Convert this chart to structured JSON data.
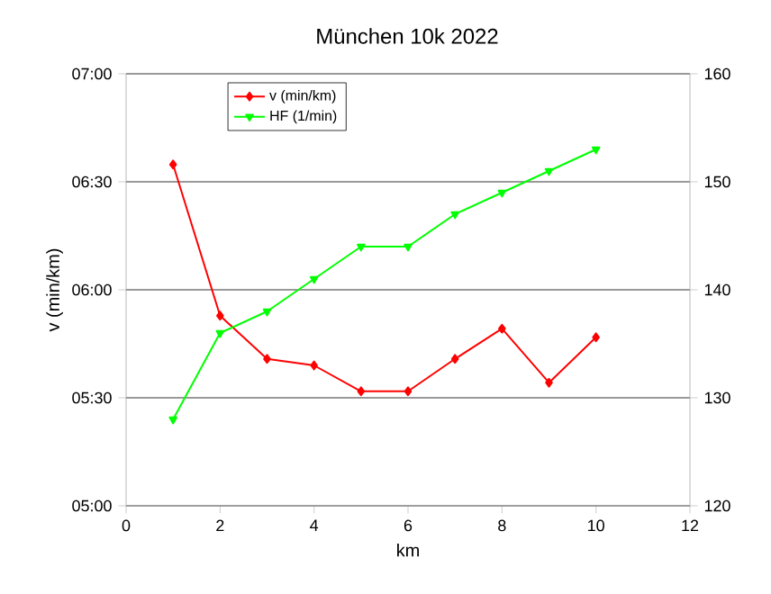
{
  "chart_data": {
    "type": "line",
    "title": "München 10k 2022",
    "xlabel": "km",
    "ylabel": "v (min/km)",
    "x": [
      1,
      2,
      3,
      4,
      5,
      6,
      7,
      8,
      9,
      10
    ],
    "series": [
      {
        "name": "v (min/km)",
        "color": "#ff0000",
        "marker": "diamond",
        "values": [
          6.58,
          5.88,
          5.68,
          5.65,
          5.53,
          5.53,
          5.68,
          5.82,
          5.57,
          5.78
        ]
      },
      {
        "name": "HF (1/min)",
        "color": "#00ff00",
        "marker": "triangle",
        "axis": "y2",
        "values": [
          128,
          136,
          138,
          141,
          144,
          144,
          147,
          149,
          151,
          153
        ]
      }
    ],
    "xlim": [
      0,
      12
    ],
    "xticks": [
      0,
      2,
      4,
      6,
      8,
      10,
      12
    ],
    "ylim": [
      5,
      7
    ],
    "yticks": [
      {
        "value": 5,
        "label": "05:00"
      },
      {
        "value": 5.5,
        "label": "05:30"
      },
      {
        "value": 6,
        "label": "06:00"
      },
      {
        "value": 6.5,
        "label": "06:30"
      },
      {
        "value": 7,
        "label": "07:00"
      }
    ],
    "y2lim": [
      120,
      160
    ],
    "y2ticks": [
      120,
      130,
      140,
      150,
      160
    ],
    "grid": "y",
    "legend": "top left",
    "line_style": "solid"
  }
}
